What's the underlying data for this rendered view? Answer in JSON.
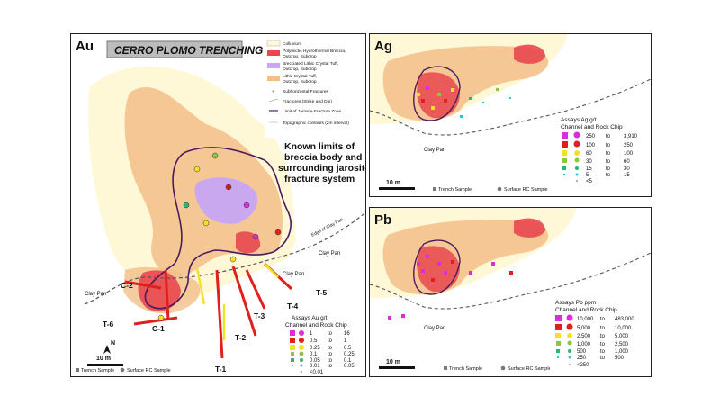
{
  "au_panel": {
    "element_tag": "Au",
    "title": "CERRO PLOMO TRENCHING",
    "annotation": "Known limits of breccia body and surrounding jarosite fracture system",
    "annotation_lines": [
      "Known limits of",
      "breccia body and",
      "surrounding jarosite",
      "fracture system"
    ],
    "legend": [
      {
        "label": "Colluvium",
        "color": "#fff8d6"
      },
      {
        "label": "Polymictic Hydrothermal Breccia, Outcrop, Subcrop",
        "lines": [
          "Polymictic Hydrothermal Breccia,",
          "Outcrop, Subcrop"
        ],
        "color": "#e8474f"
      },
      {
        "label": "Brecciated Lithic Crystal Tuff, Outcrop, Subcrop",
        "lines": [
          "Brecciated Lithic Crystal Tuff,",
          "Outcrop, Subcrop"
        ],
        "color": "#c9a8f0"
      },
      {
        "label": "Lithic Crystal Tuff, Outcrop, Subcrop",
        "lines": [
          "Lithic Crystal Tuff,",
          "Outcrop, Subcrop"
        ],
        "color": "#f3be8a"
      },
      {
        "label": "Subhorizontal Fractures",
        "color": "#999999"
      },
      {
        "label": "Fractures (Strike and Dip)",
        "color": "#999999"
      },
      {
        "label": "Limit of Jarosite Fracture Zone",
        "color": "#4b1a5c"
      },
      {
        "label": "Topographic contours (2m interval)",
        "color": "#aaaaaa"
      }
    ],
    "trench_labels": [
      "C-2",
      "C-1",
      "T-6",
      "T-1",
      "T-2",
      "T-3",
      "T-4",
      "T-5"
    ],
    "clay_pan_labels": [
      "Clay Pan",
      "Clay Pan",
      "Clay Pan"
    ],
    "edge_label": "Edge of Clay Pan",
    "north": "N",
    "scale": "10 m",
    "assay_title": [
      "Assays Au g/t",
      "Channel and Rock Chip"
    ],
    "assay_classes": [
      {
        "low": "1",
        "to": "to",
        "high": "16",
        "color": "#d92ed9"
      },
      {
        "low": "0.5",
        "to": "to",
        "high": "1",
        "color": "#e0201c"
      },
      {
        "low": "0.25",
        "to": "to",
        "high": "0.5",
        "color": "#f5e028"
      },
      {
        "low": "0.1",
        "to": "to",
        "high": "0.25",
        "color": "#8ec63f"
      },
      {
        "low": "0.05",
        "to": "to",
        "high": "0.1",
        "color": "#2bb673"
      },
      {
        "low": "0.01",
        "to": "to",
        "high": "0.05",
        "color": "#27c4d9"
      },
      {
        "low": "<0.01",
        "to": "",
        "high": "",
        "color": "#555555"
      }
    ],
    "footer": {
      "trench": "Trench Sample",
      "surface": "Surface RC Sample"
    }
  },
  "ag_panel": {
    "element_tag": "Ag",
    "clay_pan": "Clay Pan",
    "scale": "10 m",
    "assay_title": [
      "Assays Ag g/t",
      "Channel and Rock Chip"
    ],
    "assay_classes": [
      {
        "low": "250",
        "to": "to",
        "high": "3,910",
        "color": "#d92ed9"
      },
      {
        "low": "100",
        "to": "to",
        "high": "250",
        "color": "#e0201c"
      },
      {
        "low": "60",
        "to": "to",
        "high": "100",
        "color": "#f5e028"
      },
      {
        "low": "30",
        "to": "to",
        "high": "60",
        "color": "#8ec63f"
      },
      {
        "low": "15",
        "to": "to",
        "high": "30",
        "color": "#2bb673"
      },
      {
        "low": "5",
        "to": "to",
        "high": "15",
        "color": "#27c4d9"
      },
      {
        "low": "<5",
        "to": "",
        "high": "",
        "color": "#555555"
      }
    ],
    "footer": {
      "trench": "Trench Sample",
      "surface": "Surface RC Sample"
    }
  },
  "pb_panel": {
    "element_tag": "Pb",
    "clay_pan": "Clay Pan",
    "scale": "10 m",
    "assay_title": [
      "Assays Pb ppm",
      "Channel and Rock Chip"
    ],
    "assay_classes": [
      {
        "low": "10,000",
        "to": "to",
        "high": "483,000",
        "color": "#d92ed9"
      },
      {
        "low": "5,000",
        "to": "to",
        "high": "10,000",
        "color": "#e0201c"
      },
      {
        "low": "2,500",
        "to": "to",
        "high": "5,000",
        "color": "#f5e028"
      },
      {
        "low": "1,000",
        "to": "to",
        "high": "2,500",
        "color": "#8ec63f"
      },
      {
        "low": "500",
        "to": "to",
        "high": "1,000",
        "color": "#2bb673"
      },
      {
        "low": "250",
        "to": "to",
        "high": "500",
        "color": "#27c4d9"
      },
      {
        "low": "<250",
        "to": "",
        "high": "",
        "color": "#555555"
      }
    ],
    "footer": {
      "trench": "Trench Sample",
      "surface": "Surface RC Sample"
    }
  }
}
